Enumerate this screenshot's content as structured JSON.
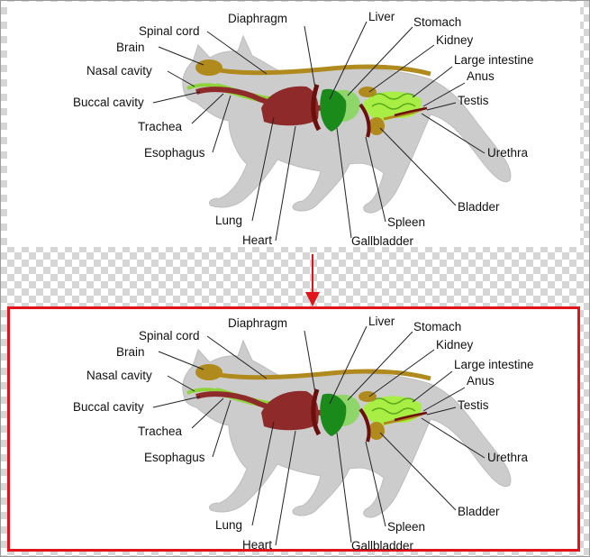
{
  "labels": {
    "spinal_cord": "Spinal cord",
    "brain": "Brain",
    "nasal_cavity": "Nasal cavity",
    "buccal_cavity": "Buccal cavity",
    "trachea": "Trachea",
    "esophagus": "Esophagus",
    "lung": "Lung",
    "heart": "Heart",
    "diaphragm": "Diaphragm",
    "liver": "Liver",
    "stomach": "Stomach",
    "kidney": "Kidney",
    "large_intestine": "Large intestine",
    "anus": "Anus",
    "testis": "Testis",
    "urethra": "Urethra",
    "bladder": "Bladder",
    "spleen": "Spleen",
    "gallbladder": "Gallbladder"
  },
  "colors": {
    "body": "#cccccc",
    "body_outline": "#bdbdbd",
    "brain_spinal": "#b08a1c",
    "trachea": "#8fd33a",
    "esophagus_heart": "#8e2a2a",
    "diaphragm": "#6b0f0f",
    "liver": "#1a8a1a",
    "stomach": "#8fd66a",
    "intestine": "#a8ee45",
    "highlight_border": "#e0141a",
    "arrow": "#e0141a"
  }
}
